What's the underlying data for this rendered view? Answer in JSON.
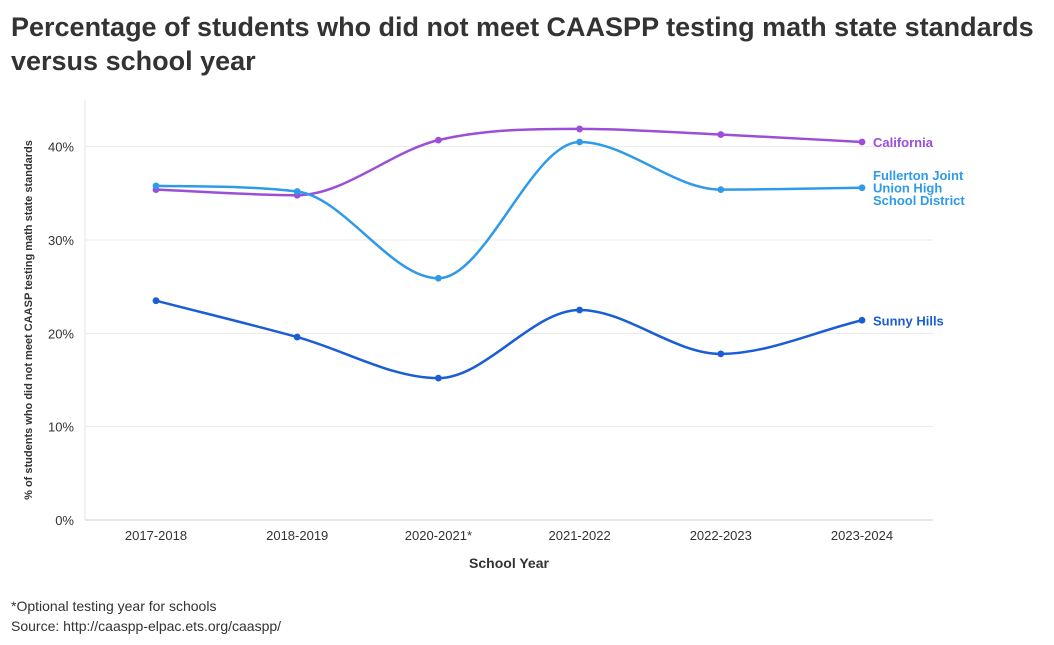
{
  "title": "Percentage of students who did not meet CAASPP testing math state standards versus school year",
  "footnote": "*Optional testing year for schools",
  "source": "Source: http://caaspp-elpac.ets.org/caaspp/",
  "chart_data": {
    "type": "line",
    "title": "Percentage of students who did not meet CAASPP testing math state standards versus school year",
    "xlabel": "School Year",
    "ylabel": "% of students who did not meet CAASP testing math state standards",
    "categories": [
      "2017-2018",
      "2018-2019",
      "2020-2021*",
      "2021-2022",
      "2022-2023",
      "2023-2024"
    ],
    "ylim": [
      0,
      45
    ],
    "yticks": [
      0,
      10,
      20,
      30,
      40
    ],
    "ytick_labels": [
      "0%",
      "10%",
      "20%",
      "30%",
      "40%"
    ],
    "grid": true,
    "legend": "direct labels at line ends",
    "series": [
      {
        "name": "California",
        "label_lines": [
          "California"
        ],
        "color": "#9b4fd6",
        "values": [
          35.4,
          34.8,
          40.7,
          41.9,
          41.3,
          40.5
        ]
      },
      {
        "name": "Fullerton Joint Union High School District",
        "label_lines": [
          "Fullerton Joint",
          "Union High",
          "School District"
        ],
        "color": "#2f9be8",
        "values": [
          35.8,
          35.2,
          25.9,
          40.5,
          35.4,
          35.6
        ]
      },
      {
        "name": "Sunny Hills",
        "label_lines": [
          "Sunny Hills"
        ],
        "color": "#1a5ed6",
        "values": [
          23.5,
          19.6,
          15.2,
          22.5,
          17.8,
          21.4
        ]
      }
    ]
  }
}
